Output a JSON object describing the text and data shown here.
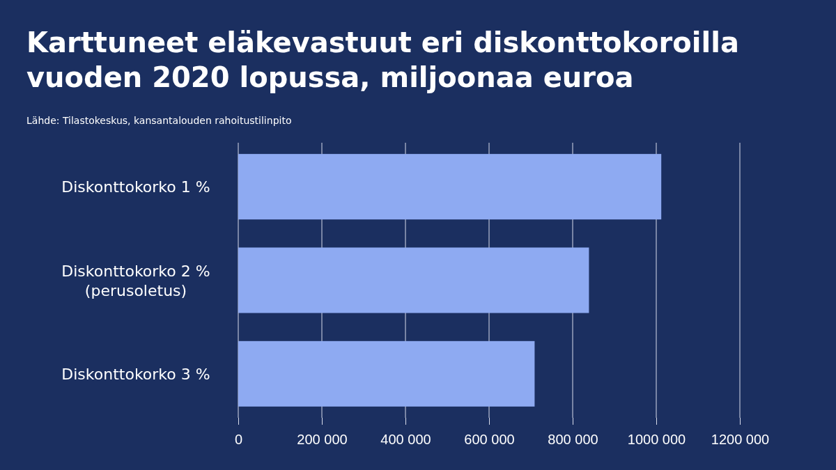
{
  "chart_data": {
    "type": "bar",
    "orientation": "horizontal",
    "title": "Karttuneet eläkevastuut eri diskonttokoroilla vuoden 2020 lopussa, miljoonaa euroa",
    "annotations": [
      "Lähde: Tilastokeskus, kansantalouden rahoitustilinpito"
    ],
    "categories": [
      "Diskonttokorko 1 %",
      "Diskonttokorko 2 %\n(perusoletus)",
      "Diskonttokorko 3 %"
    ],
    "values": [
      1012000,
      839000,
      709000
    ],
    "color": "#8eaaf2",
    "xlim": [
      0,
      1200000
    ],
    "xticks": [
      0,
      {
        "value": 200000,
        "label": "200 000"
      },
      {
        "value": 400000,
        "label": "400 000"
      },
      {
        "value": 600000,
        "label": "600 000"
      },
      {
        "value": 800000,
        "label": "800 000"
      },
      {
        "value": 1000000,
        "label": "1000 000"
      },
      {
        "value": 1200000,
        "label": "1200 000"
      }
    ],
    "grid": "x"
  }
}
